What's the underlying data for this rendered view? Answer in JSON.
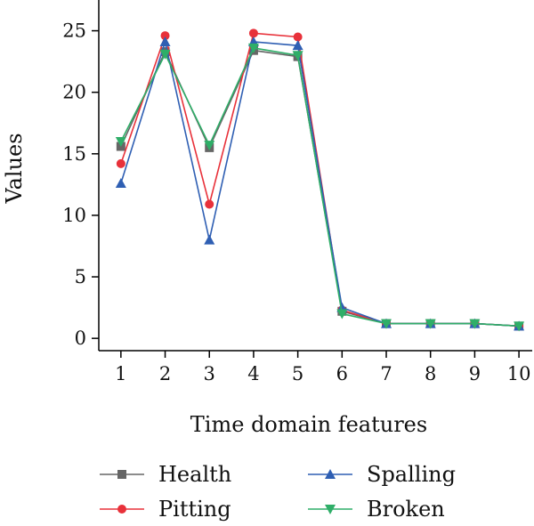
{
  "chart_data": {
    "type": "line",
    "xlabel": "Time domain features",
    "ylabel": "Values",
    "x": [
      1,
      2,
      3,
      4,
      5,
      6,
      7,
      8,
      9,
      10
    ],
    "xticks": [
      "1",
      "2",
      "3",
      "4",
      "5",
      "6",
      "7",
      "8",
      "9",
      "10"
    ],
    "yticks": [
      "0",
      "5",
      "10",
      "15",
      "20",
      "25"
    ],
    "ylim": [
      -1,
      27.5
    ],
    "xlim": [
      0.5,
      10.3
    ],
    "grid": false,
    "legend_position": "bottom",
    "series": [
      {
        "name": "Health",
        "color": "#666666",
        "marker": "square",
        "values": [
          15.6,
          23.3,
          15.5,
          23.4,
          22.9,
          2.2,
          1.2,
          1.2,
          1.2,
          1.0
        ]
      },
      {
        "name": "Pitting",
        "color": "#e8313a",
        "marker": "circle",
        "values": [
          14.2,
          24.6,
          10.9,
          24.8,
          24.5,
          2.3,
          1.2,
          1.2,
          1.2,
          1.0
        ]
      },
      {
        "name": "Spalling",
        "color": "#2f5fb3",
        "marker": "triangle-up",
        "values": [
          12.6,
          24.1,
          8.0,
          24.1,
          23.8,
          2.5,
          1.2,
          1.2,
          1.2,
          1.0
        ]
      },
      {
        "name": "Broken",
        "color": "#2fae68",
        "marker": "triangle-down",
        "values": [
          16.0,
          23.1,
          15.7,
          23.6,
          23.0,
          2.0,
          1.2,
          1.2,
          1.2,
          1.0
        ]
      }
    ]
  }
}
